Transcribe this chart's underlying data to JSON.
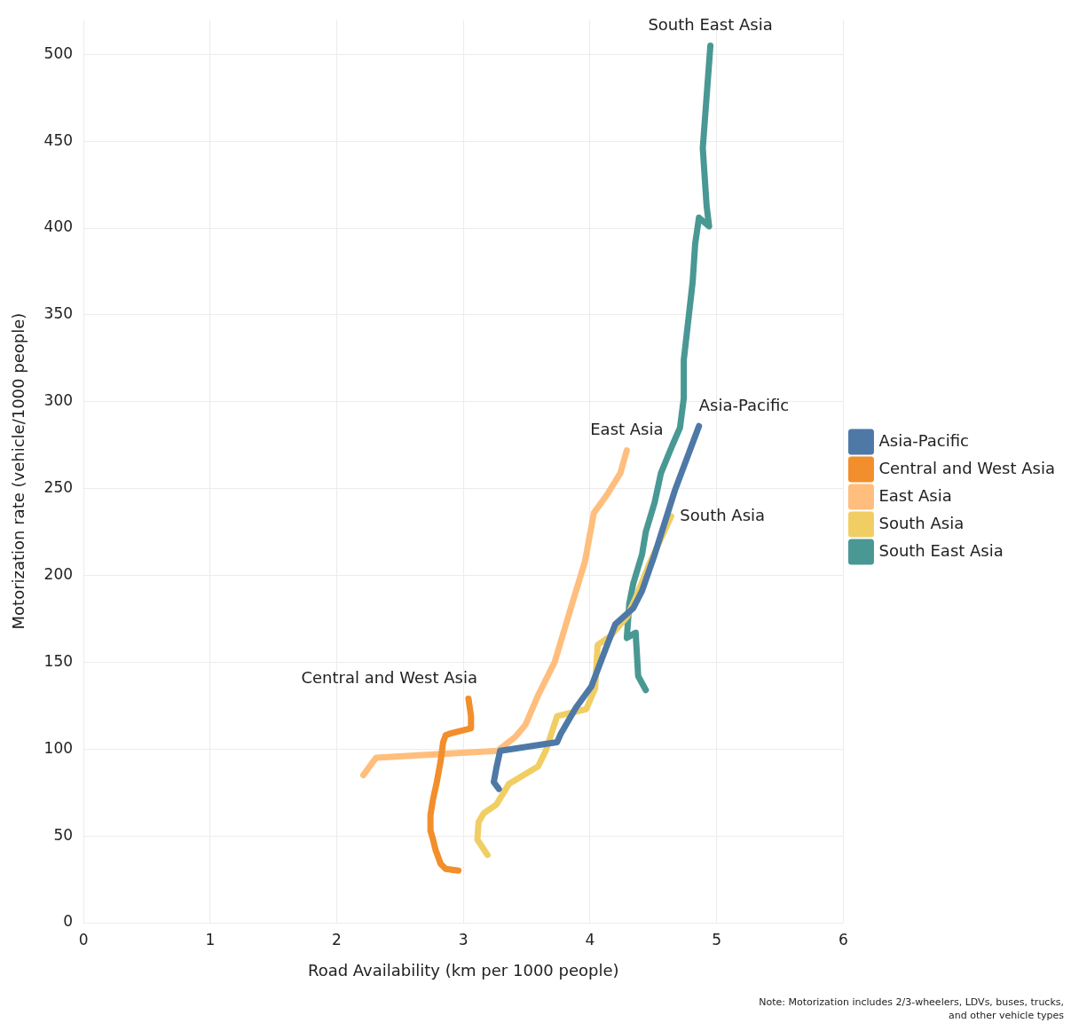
{
  "chart_data": {
    "type": "line",
    "xlabel": "Road Availability (km per 1000 people)",
    "ylabel": "Motorization rate (vehicle/1000 people)",
    "xlim": [
      0,
      6
    ],
    "xticks": [
      0,
      1,
      2,
      3,
      4,
      5,
      6
    ],
    "ylim": [
      0,
      520
    ],
    "yticks": [
      0,
      50,
      100,
      150,
      200,
      250,
      300,
      350,
      400,
      450,
      500
    ],
    "grid": true,
    "legend": "right",
    "marker": "none",
    "line_style": "solid",
    "series": [
      {
        "name": "Asia-Pacific",
        "color": "#4e79a7",
        "x": [
          3.28,
          3.24,
          3.26,
          3.29,
          3.74,
          3.77,
          3.89,
          4.01,
          4.13,
          4.2,
          4.34,
          4.41,
          4.51,
          4.67,
          4.86
        ],
        "values": [
          77,
          81,
          89,
          99,
          104,
          109,
          124,
          136,
          159,
          172,
          181,
          191,
          212,
          249,
          286
        ]
      },
      {
        "name": "Central and West Asia",
        "color": "#f28e2b",
        "x": [
          2.96,
          2.86,
          2.82,
          2.78,
          2.76,
          2.74,
          2.74,
          2.76,
          2.79,
          2.82,
          2.84,
          2.86,
          2.9,
          3.06,
          3.06,
          3.04
        ],
        "values": [
          30,
          31,
          34,
          42,
          48,
          53,
          62,
          71,
          81,
          93,
          104,
          108,
          109,
          112,
          119,
          129
        ]
      },
      {
        "name": "East Asia",
        "color": "#ffbe7d",
        "x": [
          2.21,
          2.31,
          3.27,
          3.41,
          3.49,
          3.59,
          3.72,
          3.86,
          3.96,
          4.03,
          4.13,
          4.24,
          4.29
        ],
        "values": [
          85,
          95,
          99,
          107,
          114,
          131,
          150,
          184,
          208,
          236,
          246,
          259,
          272
        ]
      },
      {
        "name": "South Asia",
        "color": "#f1ce63",
        "x": [
          3.19,
          3.11,
          3.12,
          3.16,
          3.26,
          3.36,
          3.59,
          3.65,
          3.74,
          3.97,
          4.04,
          4.06,
          4.16,
          4.29,
          4.36,
          4.47,
          4.64
        ],
        "values": [
          39,
          48,
          58,
          63,
          68,
          80,
          90,
          99,
          119,
          123,
          135,
          160,
          165,
          176,
          187,
          207,
          234
        ]
      },
      {
        "name": "South East Asia",
        "color": "#499894",
        "x": [
          4.44,
          4.38,
          4.36,
          4.29,
          4.31,
          4.34,
          4.41,
          4.44,
          4.51,
          4.56,
          4.65,
          4.71,
          4.74,
          4.74,
          4.81,
          4.83,
          4.86,
          4.94,
          4.92,
          4.89,
          4.95
        ],
        "values": [
          134,
          142,
          167,
          164,
          184,
          195,
          212,
          225,
          242,
          259,
          275,
          285,
          302,
          324,
          369,
          391,
          406,
          401,
          413,
          446,
          505
        ]
      }
    ],
    "annotations": [
      "Note: Motorization includes 2/3-wheelers, LDVs, buses, trucks, and other vehicle types"
    ]
  }
}
